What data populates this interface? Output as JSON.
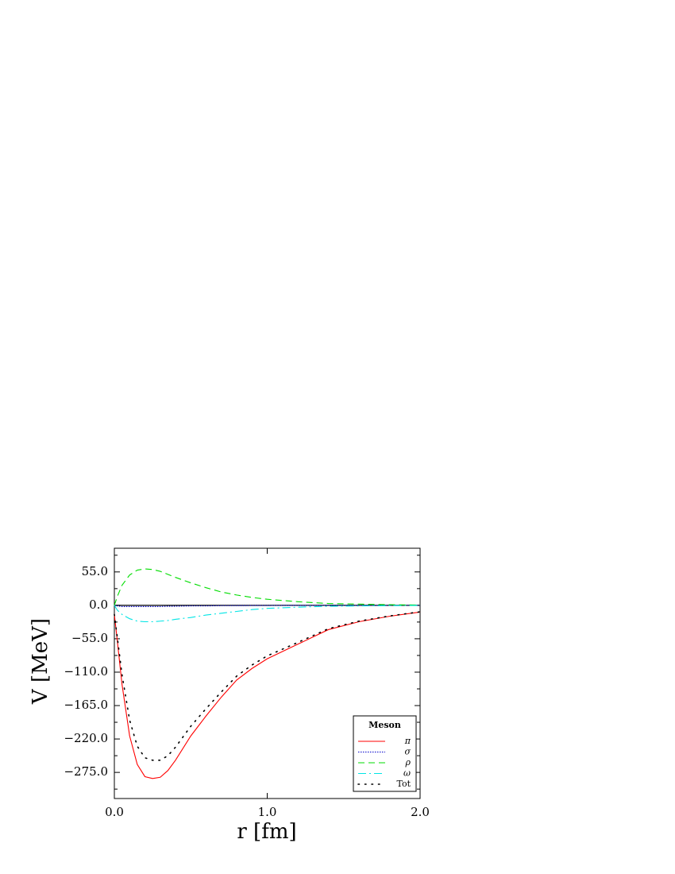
{
  "chart_data": {
    "type": "line",
    "x_label": "r [fm]",
    "y_label": "V [MeV]",
    "x": [
      0,
      0.02,
      0.05,
      0.1,
      0.15,
      0.2,
      0.25,
      0.3,
      0.35,
      0.4,
      0.5,
      0.6,
      0.7,
      0.8,
      0.9,
      1.0,
      1.2,
      1.4,
      1.6,
      1.8,
      2.0
    ],
    "series": [
      {
        "name": "π",
        "color": "#ff0000",
        "values": [
          -15,
          -60,
          -130,
          -215,
          -262,
          -282,
          -285,
          -283,
          -272,
          -255,
          -215,
          -182,
          -151,
          -123,
          -104,
          -88,
          -64,
          -40,
          -27,
          -18,
          -11
        ]
      },
      {
        "name": "σ",
        "color": "#0000cc",
        "values": [
          0,
          -1,
          -2,
          -2,
          -2,
          -2,
          -2,
          -2,
          -1.5,
          -1.5,
          -1,
          -1,
          -0.5,
          -0.5,
          -0.3,
          -0.2,
          -0.1,
          0,
          0,
          0,
          0
        ]
      },
      {
        "name": "ρ",
        "color": "#00dd00",
        "values": [
          0,
          15,
          33,
          50,
          58,
          60,
          59,
          56,
          51,
          46,
          37,
          29,
          22,
          17,
          13,
          10,
          6,
          3,
          2,
          1,
          0.5
        ]
      },
      {
        "name": "ω",
        "color": "#00e5e5",
        "values": [
          0,
          -8,
          -15,
          -22,
          -26,
          -27,
          -27,
          -26,
          -25,
          -23,
          -20,
          -16,
          -13,
          -10,
          -7,
          -5,
          -3,
          -1.5,
          -1,
          -0.5,
          -0.2
        ]
      },
      {
        "name": "Tot",
        "color": "#000000",
        "values": [
          -15,
          -54,
          -114,
          -189,
          -232,
          -251,
          -255,
          -255,
          -247.5,
          -233.5,
          -199,
          -170,
          -142.5,
          -116.5,
          -98.3,
          -83.2,
          -61.1,
          -38.5,
          -26,
          -17.5,
          -10.7
        ]
      }
    ],
    "xlim": [
      0,
      2
    ],
    "xticks": [
      {
        "value": 0,
        "label": "0.0"
      },
      {
        "value": 1,
        "label": "1.0"
      },
      {
        "value": 2,
        "label": "2.0"
      }
    ],
    "ylim": [
      -318,
      94
    ],
    "yticks": [
      {
        "value": 55,
        "label": "55.0"
      },
      {
        "value": 0,
        "label": "0.0"
      },
      {
        "value": -55,
        "label": "−55.0"
      },
      {
        "value": -110,
        "label": "−110.0"
      },
      {
        "value": -165,
        "label": "−165.0"
      },
      {
        "value": -220,
        "label": "−220.0"
      },
      {
        "value": -275,
        "label": "−275.0"
      }
    ],
    "legend_title": "Meson",
    "legend_position": "lower right"
  }
}
